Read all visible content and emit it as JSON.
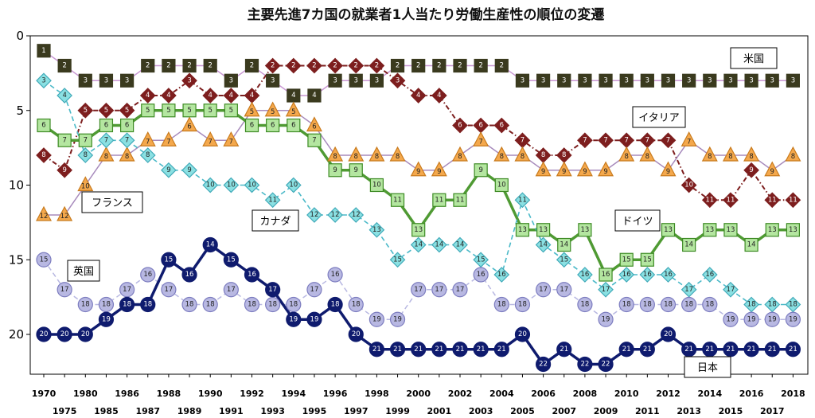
{
  "chart_data": {
    "type": "line",
    "title": "主要先進7カ国の就業者1人当たり労働生産性の順位の変遷",
    "xlabel": "",
    "ylabel": "",
    "x": [
      1970,
      1975,
      1980,
      1985,
      1986,
      1987,
      1988,
      1989,
      1990,
      1991,
      1992,
      1993,
      1994,
      1995,
      1996,
      1997,
      1998,
      1999,
      2000,
      2001,
      2002,
      2003,
      2004,
      2005,
      2006,
      2007,
      2008,
      2009,
      2010,
      2011,
      2012,
      2013,
      2014,
      2015,
      2016,
      2017,
      2018
    ],
    "x_tick_labels": [
      "1970",
      "1975",
      "1980",
      "1985",
      "1986",
      "1987",
      "1988",
      "1989",
      "1990",
      "1991",
      "1992",
      "1993",
      "1994",
      "1995",
      "1996",
      "1997",
      "1998",
      "1999",
      "2000",
      "2001",
      "2002",
      "2003",
      "2004",
      "2005",
      "2006",
      "2007",
      "2008",
      "2009",
      "2010",
      "2011",
      "2012",
      "2013",
      "2014",
      "2015",
      "2016",
      "2017",
      "2018"
    ],
    "y_ticks": [
      0,
      5,
      10,
      15,
      20
    ],
    "ylim": [
      0,
      22.7
    ],
    "y_inverted": true,
    "grid": false,
    "series": [
      {
        "name": "米国",
        "color": "#3a3a1e",
        "line_color": "#c896d2",
        "marker": "square",
        "values": [
          1,
          2,
          3,
          3,
          3,
          2,
          2,
          2,
          2,
          3,
          2,
          3,
          4,
          4,
          3,
          3,
          3,
          2,
          2,
          2,
          2,
          2,
          2,
          3,
          3,
          3,
          3,
          3,
          3,
          3,
          3,
          3,
          3,
          3,
          3,
          3,
          3
        ]
      },
      {
        "name": "フランス",
        "color": "#7d1e1e",
        "line_color": "#7d1e1e",
        "marker": "diamond",
        "values": [
          8,
          9,
          5,
          5,
          5,
          4,
          4,
          3,
          4,
          4,
          4,
          2,
          2,
          2,
          2,
          2,
          2,
          3,
          4,
          4,
          6,
          6,
          6,
          7,
          8,
          8,
          7,
          7,
          7,
          7,
          7,
          10,
          11,
          11,
          9,
          11,
          11
        ]
      },
      {
        "name": "イタリア",
        "color": "#f4a84c",
        "line_color": "#a78abc",
        "marker": "triangle",
        "values": [
          12,
          12,
          10,
          8,
          8,
          7,
          7,
          6,
          7,
          7,
          5,
          5,
          5,
          6,
          8,
          8,
          8,
          8,
          9,
          9,
          8,
          7,
          8,
          8,
          9,
          9,
          9,
          9,
          8,
          8,
          9,
          7,
          8,
          8,
          8,
          9,
          8
        ]
      },
      {
        "name": "ドイツ",
        "color": "#b4e6a0",
        "line_color": "#4f9a33",
        "marker": "square",
        "values": [
          6,
          7,
          7,
          6,
          6,
          5,
          5,
          5,
          5,
          5,
          6,
          6,
          6,
          7,
          9,
          9,
          10,
          11,
          13,
          11,
          11,
          9,
          10,
          13,
          13,
          14,
          13,
          16,
          15,
          15,
          13,
          14,
          13,
          13,
          14,
          13,
          13
        ]
      },
      {
        "name": "カナダ",
        "color": "#8ae0e2",
        "line_color": "#4ab9c8",
        "marker": "diamond",
        "values": [
          3,
          4,
          8,
          7,
          7,
          8,
          9,
          9,
          10,
          10,
          10,
          11,
          10,
          12,
          12,
          12,
          13,
          15,
          14,
          14,
          14,
          15,
          16,
          11,
          14,
          15,
          16,
          17,
          16,
          16,
          16,
          17,
          16,
          17,
          18,
          18,
          18
        ]
      },
      {
        "name": "英国",
        "color": "#b8b8e2",
        "line_color": "#b8b8e2",
        "marker": "circle",
        "values": [
          15,
          17,
          18,
          18,
          17,
          16,
          17,
          18,
          18,
          17,
          18,
          18,
          18,
          17,
          16,
          18,
          19,
          19,
          17,
          17,
          17,
          16,
          18,
          18,
          17,
          17,
          18,
          19,
          18,
          18,
          18,
          18,
          18,
          19,
          19,
          19,
          19
        ]
      },
      {
        "name": "日本",
        "color": "#0f1b6e",
        "line_color": "#0f1b6e",
        "marker": "circle",
        "values": [
          20,
          20,
          20,
          19,
          18,
          18,
          15,
          16,
          14,
          15,
          16,
          17,
          19,
          19,
          18,
          20,
          21,
          21,
          21,
          21,
          21,
          21,
          21,
          20,
          22,
          21,
          22,
          22,
          21,
          21,
          20,
          21,
          21,
          21,
          21,
          21,
          21
        ]
      }
    ]
  }
}
